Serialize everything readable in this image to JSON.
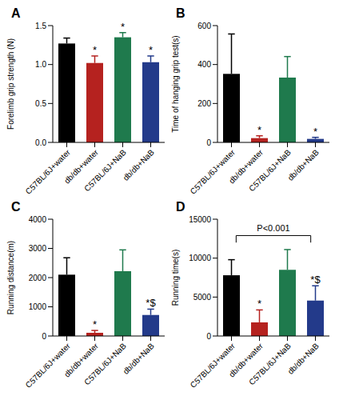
{
  "chart_data": [
    {
      "type": "bar",
      "title": "A",
      "y_label": "Forelimb grip strength (N)",
      "categories": [
        "C57BL/6J+water",
        "db/db+water",
        "C57BL/6J+NaB",
        "db/db+NaB"
      ],
      "values": [
        1.27,
        1.02,
        1.35,
        1.03
      ],
      "errors": [
        0.07,
        0.09,
        0.06,
        0.08
      ],
      "annotations": [
        null,
        "*",
        "*",
        "*"
      ],
      "colors": [
        "#000000",
        "#b5221f",
        "#1f7a4d",
        "#233a8a"
      ],
      "ylim": [
        0,
        1.5
      ],
      "yticks": [
        {
          "value": 0,
          "label": "0.0"
        },
        {
          "value": 0.5,
          "label": "0.5"
        },
        {
          "value": 1,
          "label": "1.0"
        },
        {
          "value": 1.5,
          "label": "1.5"
        }
      ],
      "grid": false
    },
    {
      "type": "bar",
      "title": "B",
      "y_label": "Time of hanging grip test(s)",
      "categories": [
        "C57BL/6J+water",
        "db/db+water",
        "C57BL/6J+NaB",
        "db/db+NaB"
      ],
      "values": [
        352,
        22,
        333,
        18
      ],
      "errors": [
        205,
        12,
        108,
        8
      ],
      "annotations": [
        null,
        "*",
        null,
        "*"
      ],
      "colors": [
        "#000000",
        "#b5221f",
        "#1f7a4d",
        "#233a8a"
      ],
      "ylim": [
        0,
        600
      ],
      "yticks": [
        0,
        200,
        400,
        600
      ],
      "grid": false
    },
    {
      "type": "bar",
      "title": "C",
      "y_label": "Running distance(m)",
      "categories": [
        "C57BL/6J+water",
        "db/db+water",
        "C57BL/6J+NaB",
        "db/db+NaB"
      ],
      "values": [
        2100,
        110,
        2220,
        720
      ],
      "errors": [
        580,
        80,
        730,
        200
      ],
      "annotations": [
        null,
        "*",
        null,
        "*$"
      ],
      "colors": [
        "#000000",
        "#b5221f",
        "#1f7a4d",
        "#233a8a"
      ],
      "ylim": [
        0,
        4000
      ],
      "yticks": [
        0,
        1000,
        2000,
        3000,
        4000
      ],
      "grid": false
    },
    {
      "type": "bar",
      "title": "D",
      "y_label": "Running time(s)",
      "categories": [
        "C57BL/6J+water",
        "db/db+water",
        "C57BL/6J+NaB",
        "db/db+NaB"
      ],
      "values": [
        7800,
        1750,
        8500,
        4550
      ],
      "errors": [
        2000,
        1600,
        2600,
        1900
      ],
      "annotations": [
        null,
        "*",
        null,
        "*$"
      ],
      "colors": [
        "#000000",
        "#b5221f",
        "#1f7a4d",
        "#233a8a"
      ],
      "ylim": [
        0,
        15000
      ],
      "yticks": [
        0,
        5000,
        10000,
        15000
      ],
      "grid": false,
      "comparison": {
        "label": "P<0.001",
        "groups": [
          [
            "C57BL/6J+water",
            "db/db+water"
          ],
          [
            "C57BL/6J+NaB",
            "db/db+NaB"
          ]
        ]
      }
    }
  ]
}
